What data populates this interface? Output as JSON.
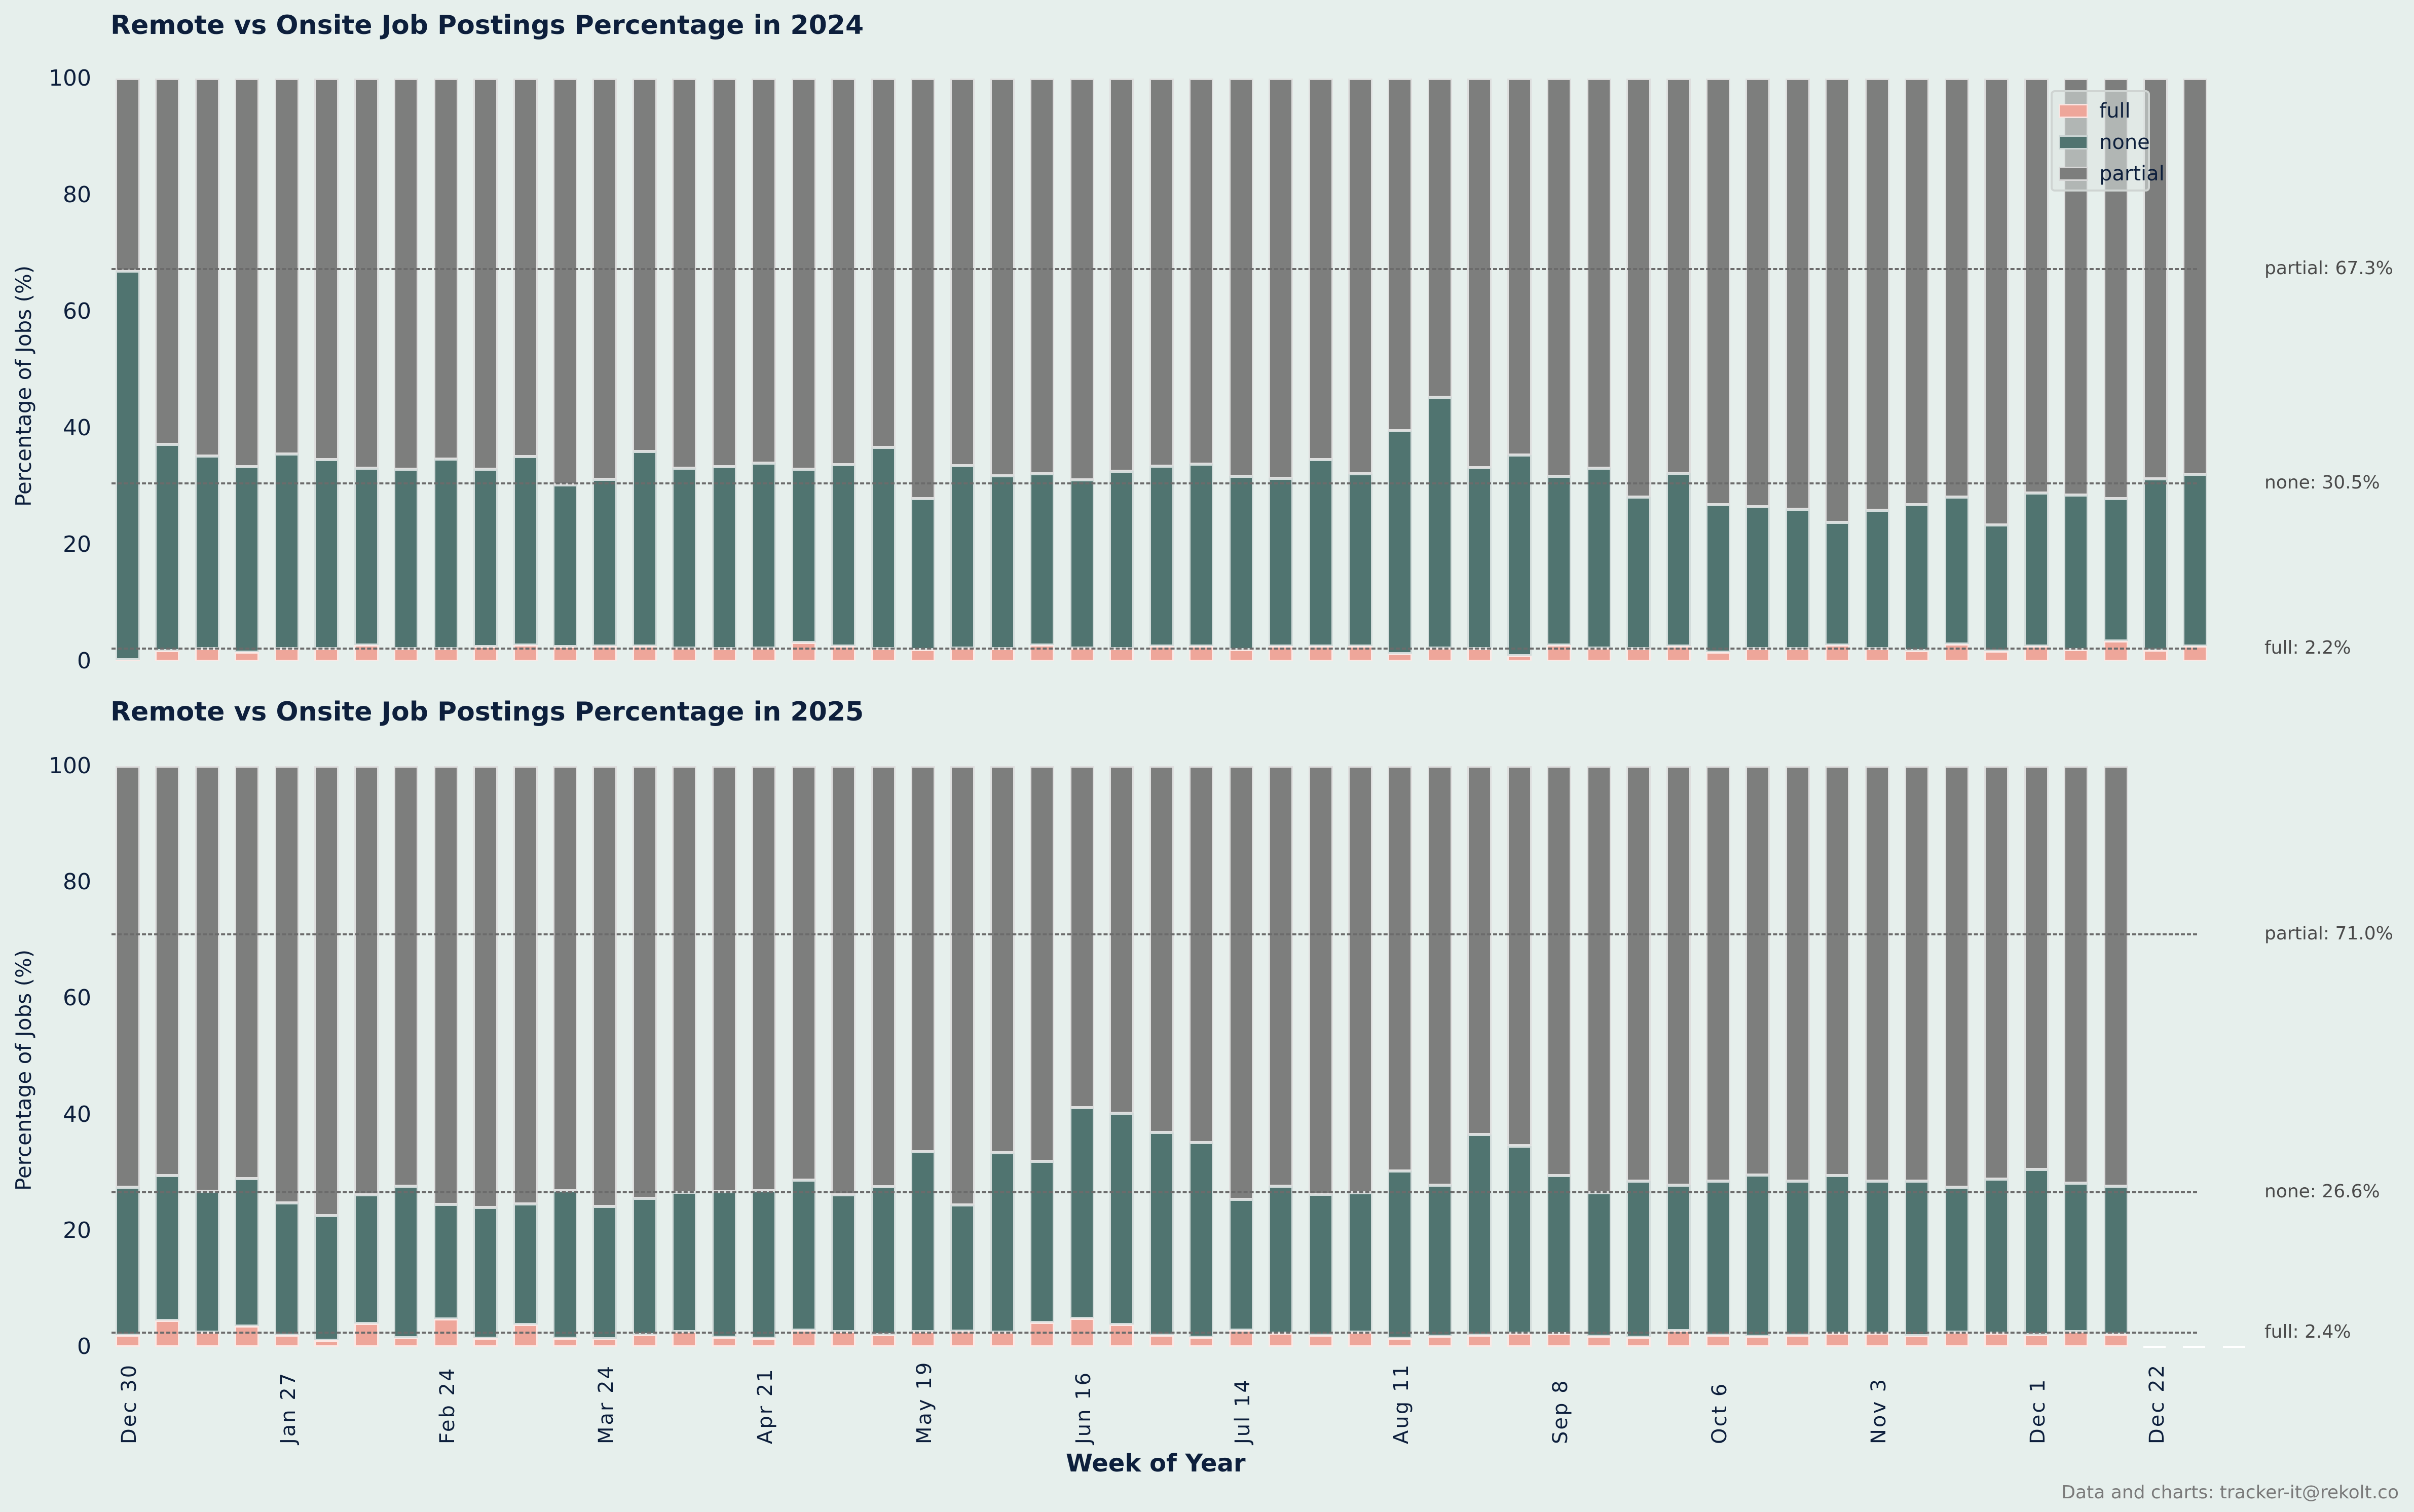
{
  "colors": {
    "background": "#e6efec",
    "full": "#eea69a",
    "none": "#507470",
    "partial": "#7d7e7d",
    "text": "#0d1f3c",
    "refline": "#6b6b6b"
  },
  "legend": {
    "items": [
      {
        "label": "full",
        "key": "full"
      },
      {
        "label": "none",
        "key": "none"
      },
      {
        "label": "partial",
        "key": "partial"
      }
    ]
  },
  "x_axis": {
    "label": "Week of Year",
    "ticks": [
      "Dec 30",
      "Jan 27",
      "Feb 24",
      "Mar 24",
      "Apr 21",
      "May 19",
      "Jun 16",
      "Jul 14",
      "Aug 11",
      "Sep 8",
      "Oct 6",
      "Nov 3",
      "Dec 1",
      "Dec 22"
    ]
  },
  "footer": "Data and charts: tracker-it@rekolt.co",
  "chart_data": [
    {
      "type": "bar",
      "stacked": true,
      "title": "Remote vs Onsite Job Postings Percentage in 2024",
      "xlabel": "",
      "ylabel": "Percentage of Jobs (%)",
      "ylim": [
        0,
        100
      ],
      "yticks": [
        0,
        20,
        40,
        60,
        80,
        100
      ],
      "grid": false,
      "legend_position": "upper right",
      "reference_lines": [
        {
          "series": "partial",
          "value": 67.3,
          "label": "partial: 67.3%"
        },
        {
          "series": "none",
          "value": 30.5,
          "label": "none: 30.5%"
        },
        {
          "series": "full",
          "value": 2.2,
          "label": "full: 2.2%"
        }
      ],
      "series": [
        {
          "name": "full",
          "values": [
            0.3,
            1.8,
            2.2,
            1.6,
            2.2,
            2.2,
            2.8,
            2.2,
            2.2,
            2.5,
            2.8,
            2.5,
            2.6,
            2.6,
            2.3,
            2.2,
            2.3,
            3.2,
            2.6,
            2.2,
            2.0,
            2.3,
            2.2,
            2.8,
            2.3,
            2.2,
            2.6,
            2.6,
            2.0,
            2.6,
            2.6,
            2.6,
            1.3,
            2.3,
            2.2,
            1.0,
            2.8,
            2.3,
            2.2,
            2.6,
            1.6,
            2.2,
            2.2,
            2.8,
            2.2,
            1.8,
            3.0,
            1.7,
            2.6,
            2.0,
            3.5,
            1.9,
            2.6
          ]
        },
        {
          "name": "none",
          "values": [
            66.7,
            35.4,
            33.0,
            31.8,
            33.4,
            32.4,
            30.3,
            30.8,
            32.5,
            30.5,
            32.3,
            27.8,
            28.6,
            33.4,
            30.8,
            31.2,
            31.7,
            29.8,
            31.1,
            34.5,
            25.9,
            31.3,
            29.6,
            29.4,
            28.8,
            30.4,
            30.9,
            31.2,
            29.7,
            28.8,
            32.0,
            29.6,
            38.3,
            43.0,
            31.0,
            34.4,
            28.9,
            30.8,
            26.0,
            29.7,
            25.3,
            24.3,
            23.9,
            21.0,
            23.7,
            25.1,
            25.2,
            21.7,
            26.3,
            26.5,
            24.4,
            29.4,
            29.5
          ]
        },
        {
          "name": "partial",
          "values": [
            33.0,
            62.8,
            64.8,
            66.6,
            64.4,
            65.4,
            66.9,
            67.0,
            65.3,
            67.0,
            64.9,
            69.7,
            68.8,
            64.0,
            66.9,
            66.6,
            66.0,
            67.0,
            66.3,
            63.3,
            72.1,
            66.4,
            68.2,
            67.8,
            68.9,
            67.4,
            66.5,
            66.2,
            68.3,
            68.6,
            65.4,
            67.8,
            60.4,
            54.7,
            66.8,
            64.6,
            68.3,
            66.9,
            71.8,
            67.7,
            73.1,
            73.5,
            73.9,
            76.2,
            74.1,
            73.1,
            71.8,
            76.6,
            71.1,
            71.5,
            72.1,
            68.7,
            67.9
          ]
        }
      ]
    },
    {
      "type": "bar",
      "stacked": true,
      "title": "Remote vs Onsite Job Postings Percentage in 2025",
      "xlabel": "Week of Year",
      "ylabel": "Percentage of Jobs (%)",
      "ylim": [
        0,
        100
      ],
      "yticks": [
        0,
        20,
        40,
        60,
        80,
        100
      ],
      "grid": false,
      "reference_lines": [
        {
          "series": "partial",
          "value": 71.0,
          "label": "partial: 71.0%"
        },
        {
          "series": "none",
          "value": 26.6,
          "label": "none: 26.6%"
        },
        {
          "series": "full",
          "value": 2.4,
          "label": "full: 2.4%"
        }
      ],
      "series": [
        {
          "name": "full",
          "values": [
            2.0,
            4.5,
            2.5,
            3.6,
            2.0,
            1.1,
            4.0,
            1.6,
            4.8,
            1.5,
            3.8,
            1.5,
            1.4,
            2.1,
            2.6,
            1.7,
            1.5,
            2.9,
            2.6,
            2.1,
            2.6,
            2.7,
            2.5,
            4.2,
            4.9,
            3.8,
            2.0,
            1.7,
            2.9,
            2.4,
            2.0,
            2.5,
            1.5,
            1.8,
            2.0,
            2.4,
            2.3,
            1.8,
            1.7,
            2.8,
            2.0,
            1.8,
            2.0,
            2.4,
            2.4,
            1.9,
            2.5,
            2.4,
            2.1,
            2.6,
            2.2,
            0,
            0,
            0
          ]
        },
        {
          "name": "none",
          "values": [
            25.5,
            25.0,
            24.3,
            25.4,
            22.8,
            21.5,
            22.2,
            26.1,
            19.7,
            22.5,
            20.8,
            25.4,
            22.8,
            23.5,
            24.0,
            25.0,
            25.4,
            25.8,
            23.6,
            25.5,
            31.0,
            21.7,
            30.9,
            27.7,
            36.3,
            36.4,
            34.9,
            33.5,
            22.5,
            25.3,
            24.3,
            24.0,
            28.8,
            26.0,
            34.6,
            32.2,
            27.2,
            24.7,
            26.8,
            25.0,
            26.5,
            27.8,
            26.5,
            27.1,
            26.1,
            26.6,
            25.0,
            26.5,
            28.4,
            25.6,
            25.5,
            0,
            0,
            0
          ]
        },
        {
          "name": "partial",
          "values": [
            72.5,
            70.5,
            73.2,
            71.0,
            75.2,
            77.4,
            73.8,
            72.3,
            75.5,
            76.0,
            75.4,
            73.1,
            75.8,
            74.4,
            73.4,
            73.3,
            73.1,
            71.3,
            73.8,
            72.4,
            66.4,
            75.6,
            66.6,
            68.1,
            58.8,
            59.8,
            63.1,
            64.8,
            74.6,
            72.3,
            73.7,
            73.5,
            69.7,
            72.2,
            63.4,
            65.4,
            70.5,
            73.5,
            71.5,
            72.2,
            71.5,
            70.4,
            71.5,
            70.5,
            71.5,
            71.5,
            72.5,
            71.1,
            69.5,
            71.8,
            72.3,
            0,
            0,
            0
          ]
        }
      ]
    }
  ]
}
